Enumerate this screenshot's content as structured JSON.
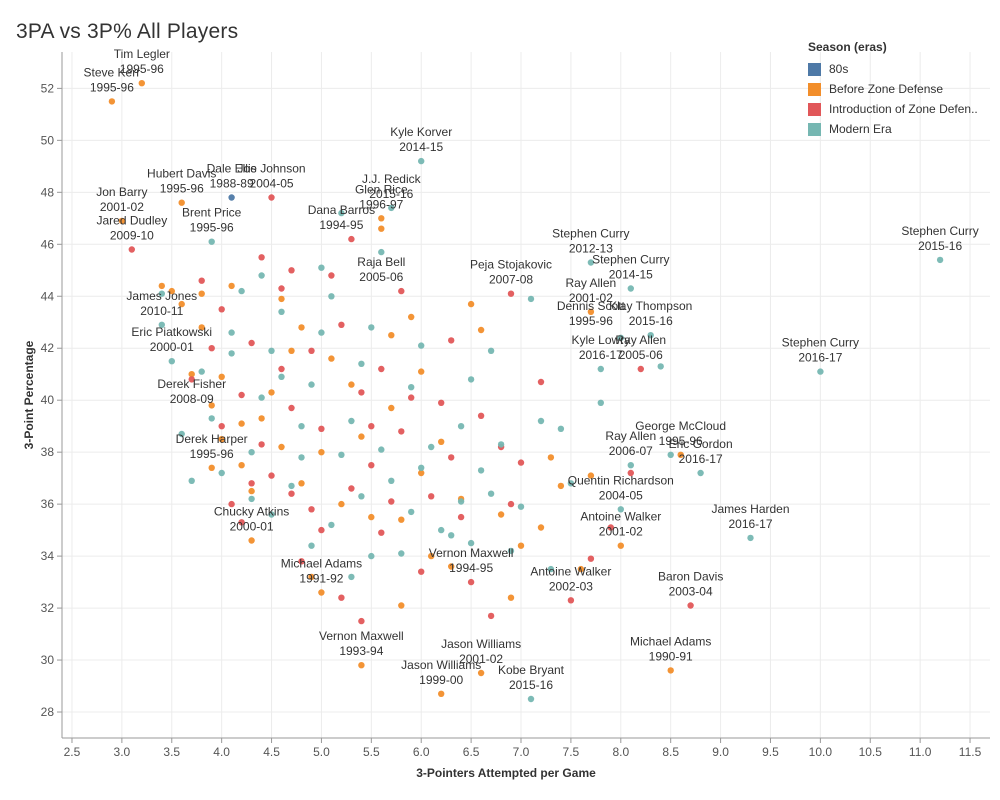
{
  "chart_data": {
    "type": "scatter",
    "title": "3PA vs 3P% All Players",
    "xlabel": "3-Pointers Attempted per Game",
    "ylabel": "3-Point Percentage",
    "xlim": [
      2.4,
      11.7
    ],
    "ylim": [
      27,
      53.4
    ],
    "xticks": [
      2.5,
      3.0,
      3.5,
      4.0,
      4.5,
      5.0,
      5.5,
      6.0,
      6.5,
      7.0,
      7.5,
      8.0,
      8.5,
      9.0,
      9.5,
      10.0,
      10.5,
      11.0,
      11.5
    ],
    "xtick_labels": [
      "2.5",
      "3.0",
      "3.5",
      "4.0",
      "4.5",
      "5.0",
      "5.5",
      "6.0",
      "6.5",
      "7.0",
      "7.5",
      "8.0",
      "8.5",
      "9.0",
      "9.5",
      "10.0",
      "10.5",
      "11.0",
      "11.5"
    ],
    "yticks": [
      28,
      30,
      32,
      34,
      36,
      38,
      40,
      42,
      44,
      46,
      48,
      50,
      52
    ],
    "ytick_labels": [
      "28",
      "30",
      "32",
      "34",
      "36",
      "38",
      "40",
      "42",
      "44",
      "46",
      "48",
      "50",
      "52"
    ],
    "grid": true,
    "legend": {
      "title": "Season (eras)",
      "placement": "top-right",
      "entries": [
        {
          "name": "80s",
          "color": "#4e79a7"
        },
        {
          "name": "Before Zone Defense",
          "color": "#f28e2b"
        },
        {
          "name": "Introduction of Zone Defen..",
          "color": "#e15759"
        },
        {
          "name": "Modern Era",
          "color": "#76b7b2"
        }
      ]
    },
    "series": [
      {
        "name": "80s",
        "points": [
          [
            4.1,
            47.8
          ]
        ]
      },
      {
        "name": "Before Zone Defense",
        "points": [
          [
            3.2,
            52.2
          ],
          [
            2.9,
            51.5
          ],
          [
            3.6,
            47.6
          ],
          [
            3.0,
            46.9
          ],
          [
            5.6,
            47.0
          ],
          [
            5.6,
            46.6
          ],
          [
            3.4,
            44.4
          ],
          [
            3.5,
            44.2
          ],
          [
            7.7,
            43.4
          ],
          [
            6.6,
            42.7
          ],
          [
            8.0,
            34.4
          ],
          [
            8.5,
            29.6
          ],
          [
            6.2,
            28.7
          ],
          [
            5.4,
            29.8
          ],
          [
            6.6,
            29.5
          ],
          [
            6.9,
            32.4
          ],
          [
            5.0,
            32.6
          ],
          [
            3.9,
            39.8
          ],
          [
            4.2,
            37.5
          ],
          [
            4.6,
            38.2
          ],
          [
            5.2,
            36.0
          ],
          [
            4.3,
            34.6
          ],
          [
            7.7,
            37.1
          ],
          [
            7.2,
            35.1
          ],
          [
            7.6,
            33.5
          ],
          [
            8.6,
            37.9
          ],
          [
            7.4,
            36.7
          ],
          [
            6.1,
            34.0
          ],
          [
            5.8,
            35.4
          ],
          [
            4.8,
            42.8
          ],
          [
            5.9,
            43.2
          ],
          [
            6.5,
            43.7
          ],
          [
            4.1,
            44.4
          ],
          [
            4.7,
            41.9
          ],
          [
            5.3,
            40.6
          ],
          [
            6.0,
            41.1
          ],
          [
            3.8,
            42.8
          ],
          [
            4.0,
            40.9
          ],
          [
            4.4,
            39.3
          ],
          [
            5.7,
            39.7
          ],
          [
            6.2,
            38.4
          ],
          [
            5.0,
            38.0
          ],
          [
            4.3,
            36.5
          ],
          [
            5.5,
            35.5
          ],
          [
            6.4,
            36.2
          ],
          [
            6.8,
            35.6
          ],
          [
            7.3,
            37.8
          ],
          [
            3.9,
            37.4
          ],
          [
            4.5,
            40.3
          ],
          [
            5.1,
            41.6
          ],
          [
            5.7,
            42.5
          ],
          [
            4.6,
            43.9
          ],
          [
            3.7,
            41.0
          ],
          [
            4.9,
            33.2
          ],
          [
            5.8,
            32.1
          ],
          [
            6.3,
            33.6
          ],
          [
            7.0,
            34.4
          ],
          [
            4.2,
            39.1
          ],
          [
            5.4,
            38.6
          ],
          [
            6.0,
            37.2
          ],
          [
            4.8,
            36.8
          ],
          [
            3.6,
            43.7
          ],
          [
            3.8,
            44.1
          ],
          [
            4.0,
            38.5
          ]
        ]
      },
      {
        "name": "Introduction of Zone Defen..",
        "points": [
          [
            3.1,
            45.8
          ],
          [
            4.5,
            47.8
          ],
          [
            4.4,
            45.5
          ],
          [
            6.9,
            44.1
          ],
          [
            8.2,
            41.2
          ],
          [
            7.2,
            40.7
          ],
          [
            8.1,
            37.2
          ],
          [
            7.9,
            35.1
          ],
          [
            8.7,
            32.1
          ],
          [
            7.5,
            32.3
          ],
          [
            6.5,
            33.0
          ],
          [
            5.4,
            31.5
          ],
          [
            6.7,
            31.7
          ],
          [
            5.2,
            32.4
          ],
          [
            4.3,
            36.8
          ],
          [
            3.8,
            44.6
          ],
          [
            4.7,
            45.0
          ],
          [
            5.3,
            46.2
          ],
          [
            5.8,
            44.2
          ],
          [
            6.3,
            42.3
          ],
          [
            6.8,
            38.2
          ],
          [
            4.6,
            41.2
          ],
          [
            5.0,
            38.9
          ],
          [
            5.5,
            37.5
          ],
          [
            6.1,
            36.3
          ],
          [
            4.2,
            40.2
          ],
          [
            3.9,
            42.0
          ],
          [
            4.4,
            38.3
          ],
          [
            4.9,
            35.8
          ],
          [
            5.6,
            34.9
          ],
          [
            6.4,
            35.5
          ],
          [
            7.7,
            33.9
          ],
          [
            4.0,
            43.5
          ],
          [
            4.7,
            39.7
          ],
          [
            5.2,
            42.9
          ],
          [
            5.9,
            40.1
          ],
          [
            6.6,
            39.4
          ],
          [
            4.1,
            36.0
          ],
          [
            4.8,
            33.8
          ],
          [
            5.3,
            36.6
          ],
          [
            5.8,
            38.8
          ],
          [
            6.2,
            39.9
          ],
          [
            7.0,
            37.6
          ],
          [
            3.7,
            40.8
          ],
          [
            4.3,
            42.2
          ],
          [
            4.9,
            41.9
          ],
          [
            5.6,
            41.2
          ],
          [
            4.5,
            37.1
          ],
          [
            5.0,
            35.0
          ],
          [
            5.7,
            36.1
          ],
          [
            6.0,
            33.4
          ],
          [
            4.0,
            39.0
          ],
          [
            4.6,
            44.3
          ],
          [
            5.1,
            44.8
          ],
          [
            6.3,
            37.8
          ],
          [
            6.9,
            36.0
          ],
          [
            4.2,
            35.3
          ],
          [
            5.4,
            40.3
          ],
          [
            4.7,
            36.4
          ],
          [
            5.5,
            39.0
          ]
        ]
      },
      {
        "name": "Modern Era",
        "points": [
          [
            6.0,
            49.2
          ],
          [
            5.7,
            47.4
          ],
          [
            5.2,
            47.2
          ],
          [
            3.9,
            46.1
          ],
          [
            3.4,
            44.1
          ],
          [
            5.6,
            45.7
          ],
          [
            7.7,
            45.3
          ],
          [
            8.1,
            44.3
          ],
          [
            11.2,
            45.4
          ],
          [
            10.0,
            41.1
          ],
          [
            7.1,
            43.9
          ],
          [
            8.0,
            42.4
          ],
          [
            8.3,
            42.5
          ],
          [
            7.8,
            41.2
          ],
          [
            7.8,
            39.9
          ],
          [
            8.4,
            41.3
          ],
          [
            8.8,
            37.2
          ],
          [
            9.3,
            34.7
          ],
          [
            8.1,
            37.5
          ],
          [
            8.5,
            37.9
          ],
          [
            8.0,
            35.8
          ],
          [
            7.1,
            28.5
          ],
          [
            3.5,
            41.5
          ],
          [
            3.4,
            42.9
          ],
          [
            3.8,
            41.1
          ],
          [
            4.1,
            42.6
          ],
          [
            4.5,
            41.9
          ],
          [
            4.9,
            40.6
          ],
          [
            5.3,
            39.2
          ],
          [
            5.6,
            38.1
          ],
          [
            6.0,
            37.4
          ],
          [
            6.4,
            36.1
          ],
          [
            6.9,
            34.2
          ],
          [
            7.3,
            33.5
          ],
          [
            3.9,
            39.3
          ],
          [
            4.3,
            38.0
          ],
          [
            4.7,
            36.7
          ],
          [
            5.1,
            35.2
          ],
          [
            5.5,
            34.0
          ],
          [
            6.2,
            35.0
          ],
          [
            6.7,
            36.4
          ],
          [
            7.5,
            36.8
          ],
          [
            4.2,
            44.2
          ],
          [
            4.6,
            43.4
          ],
          [
            5.0,
            42.6
          ],
          [
            5.4,
            41.4
          ],
          [
            5.9,
            40.5
          ],
          [
            6.4,
            39.0
          ],
          [
            6.8,
            38.3
          ],
          [
            7.2,
            39.2
          ],
          [
            4.4,
            40.1
          ],
          [
            4.8,
            39.0
          ],
          [
            5.2,
            37.9
          ],
          [
            5.7,
            36.9
          ],
          [
            6.1,
            38.2
          ],
          [
            6.6,
            37.3
          ],
          [
            7.0,
            35.9
          ],
          [
            3.6,
            38.7
          ],
          [
            4.0,
            37.2
          ],
          [
            4.5,
            35.6
          ],
          [
            4.9,
            34.4
          ],
          [
            5.3,
            33.2
          ],
          [
            5.8,
            34.1
          ],
          [
            6.3,
            34.8
          ],
          [
            4.1,
            41.8
          ],
          [
            4.6,
            40.9
          ],
          [
            5.1,
            44.0
          ],
          [
            5.5,
            42.8
          ],
          [
            6.0,
            42.1
          ],
          [
            6.5,
            40.8
          ],
          [
            7.4,
            38.9
          ],
          [
            3.7,
            36.9
          ],
          [
            4.3,
            36.2
          ],
          [
            4.8,
            37.8
          ],
          [
            5.4,
            36.3
          ],
          [
            5.9,
            35.7
          ],
          [
            6.5,
            34.5
          ],
          [
            5.0,
            45.1
          ],
          [
            4.4,
            44.8
          ],
          [
            6.7,
            41.9
          ]
        ]
      }
    ],
    "annotations": [
      {
        "x": 3.2,
        "y": 52.2,
        "lines": [
          "Tim Legler",
          "1995-96"
        ]
      },
      {
        "x": 2.9,
        "y": 51.5,
        "lines": [
          "Steve Kerr",
          "1995-96"
        ]
      },
      {
        "x": 6.0,
        "y": 49.2,
        "lines": [
          "Kyle Korver",
          "2014-15"
        ]
      },
      {
        "x": 3.6,
        "y": 47.6,
        "lines": [
          "Hubert Davis",
          "1995-96"
        ]
      },
      {
        "x": 4.1,
        "y": 47.8,
        "lines": [
          "Dale Ellis",
          "1988-89"
        ]
      },
      {
        "x": 4.5,
        "y": 47.8,
        "lines": [
          "Joe Johnson",
          "2004-05"
        ]
      },
      {
        "x": 5.7,
        "y": 47.4,
        "lines": [
          "J.J. Redick",
          "2015-16"
        ]
      },
      {
        "x": 3.0,
        "y": 46.9,
        "lines": [
          "Jon Barry",
          "2001-02"
        ]
      },
      {
        "x": 3.9,
        "y": 46.1,
        "lines": [
          "Brent Price",
          "1995-96"
        ]
      },
      {
        "x": 5.6,
        "y": 47.0,
        "lines": [
          "Glen Rice",
          "1996-97"
        ]
      },
      {
        "x": 5.2,
        "y": 46.2,
        "lines": [
          "Dana Barros",
          "1994-95"
        ]
      },
      {
        "x": 7.7,
        "y": 45.3,
        "lines": [
          "Stephen Curry",
          "2012-13"
        ]
      },
      {
        "x": 11.2,
        "y": 45.4,
        "lines": [
          "Stephen Curry",
          "2015-16"
        ]
      },
      {
        "x": 3.1,
        "y": 45.8,
        "lines": [
          "Jared Dudley",
          "2009-10"
        ]
      },
      {
        "x": 6.9,
        "y": 44.1,
        "lines": [
          "Peja Stojakovic",
          "2007-08"
        ]
      },
      {
        "x": 5.6,
        "y": 44.2,
        "lines": [
          "Raja Bell",
          "2005-06"
        ]
      },
      {
        "x": 7.7,
        "y": 43.4,
        "lines": [
          "Ray Allen",
          "2001-02"
        ]
      },
      {
        "x": 8.1,
        "y": 44.3,
        "lines": [
          "Stephen Curry",
          "2014-15"
        ]
      },
      {
        "x": 3.4,
        "y": 42.9,
        "lines": [
          "James Jones",
          "2010-11"
        ]
      },
      {
        "x": 7.7,
        "y": 42.5,
        "lines": [
          "Dennis Scott",
          "1995-96"
        ]
      },
      {
        "x": 8.3,
        "y": 42.5,
        "lines": [
          "Klay Thompson",
          "2015-16"
        ]
      },
      {
        "x": 10.0,
        "y": 41.1,
        "lines": [
          "Stephen Curry",
          "2016-17"
        ]
      },
      {
        "x": 7.8,
        "y": 41.2,
        "lines": [
          "Kyle Lowry",
          "2016-17"
        ]
      },
      {
        "x": 3.5,
        "y": 41.5,
        "lines": [
          "Eric Piatkowski",
          "2000-01"
        ]
      },
      {
        "x": 8.2,
        "y": 41.2,
        "lines": [
          "Ray Allen",
          "2005-06"
        ]
      },
      {
        "x": 3.7,
        "y": 39.5,
        "lines": [
          "Derek Fisher",
          "2008-09"
        ]
      },
      {
        "x": 8.6,
        "y": 37.9,
        "lines": [
          "George McCloud",
          "1995-96"
        ]
      },
      {
        "x": 3.9,
        "y": 37.4,
        "lines": [
          "Derek Harper",
          "1995-96"
        ]
      },
      {
        "x": 8.1,
        "y": 37.5,
        "lines": [
          "Ray Allen",
          "2006-07"
        ]
      },
      {
        "x": 8.8,
        "y": 37.2,
        "lines": [
          "Eric Gordon",
          "2016-17"
        ]
      },
      {
        "x": 8.0,
        "y": 35.8,
        "lines": [
          "Quentin Richardson",
          "2004-05"
        ]
      },
      {
        "x": 4.3,
        "y": 34.6,
        "lines": [
          "Chucky Atkins",
          "2000-01"
        ]
      },
      {
        "x": 9.3,
        "y": 34.7,
        "lines": [
          "James Harden",
          "2016-17"
        ]
      },
      {
        "x": 8.0,
        "y": 34.4,
        "lines": [
          "Antoine Walker",
          "2001-02"
        ]
      },
      {
        "x": 6.5,
        "y": 33.0,
        "lines": [
          "Vernon Maxwell",
          "1994-95"
        ]
      },
      {
        "x": 5.0,
        "y": 32.6,
        "lines": [
          "Michael Adams",
          "1991-92"
        ]
      },
      {
        "x": 8.7,
        "y": 32.1,
        "lines": [
          "Baron Davis",
          "2003-04"
        ]
      },
      {
        "x": 7.5,
        "y": 32.3,
        "lines": [
          "Antoine Walker",
          "2002-03"
        ]
      },
      {
        "x": 5.4,
        "y": 29.8,
        "lines": [
          "Vernon Maxwell",
          "1993-94"
        ]
      },
      {
        "x": 6.6,
        "y": 29.5,
        "lines": [
          "Jason Williams",
          "2001-02"
        ]
      },
      {
        "x": 8.5,
        "y": 29.6,
        "lines": [
          "Michael Adams",
          "1990-91"
        ]
      },
      {
        "x": 7.1,
        "y": 28.5,
        "lines": [
          "Kobe Bryant",
          "2015-16"
        ]
      },
      {
        "x": 6.2,
        "y": 28.7,
        "lines": [
          "Jason Williams",
          "1999-00"
        ]
      }
    ]
  }
}
